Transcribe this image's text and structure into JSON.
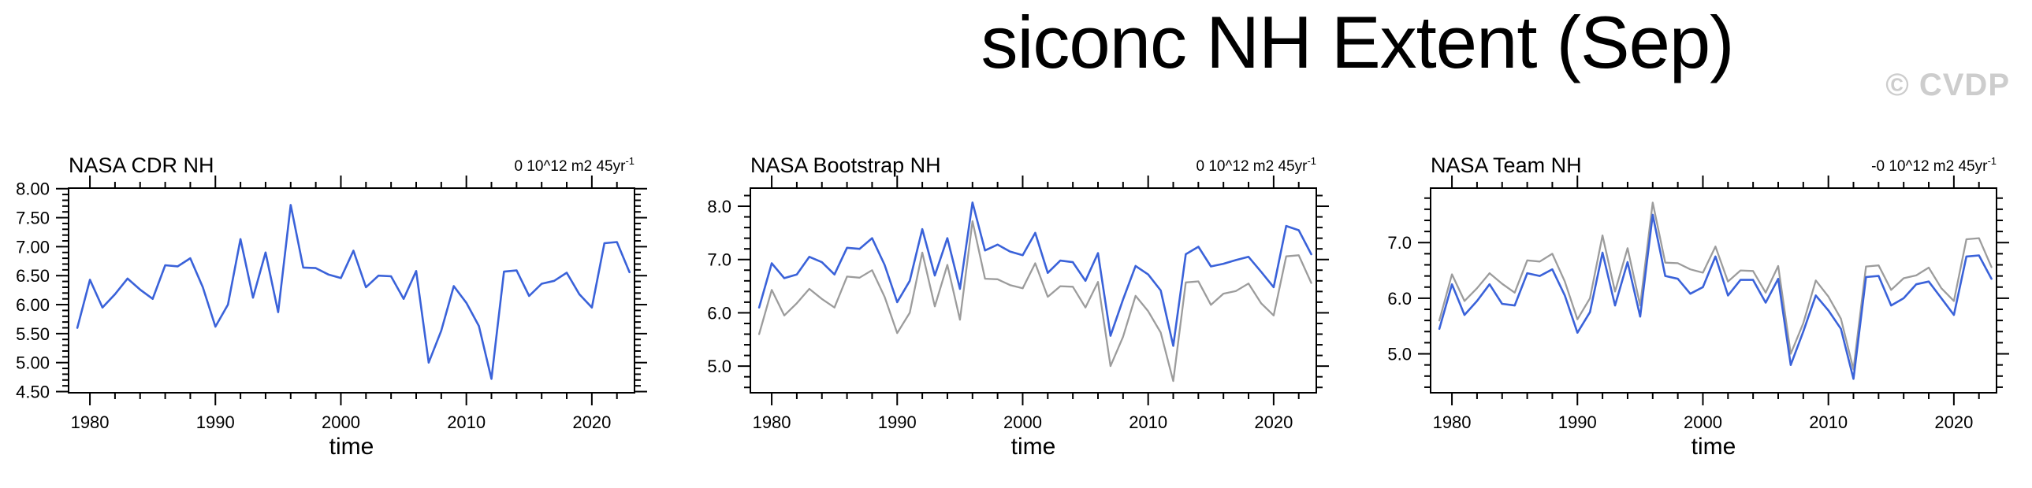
{
  "title": "siconc NH Extent (Sep)",
  "watermark": "© CVDP",
  "colors": {
    "primary_line": "#3a62d9",
    "reference_line": "#9c9c9c",
    "axis": "#000000",
    "text": "#000000",
    "watermark": "#cdcdcd",
    "background": "#ffffff"
  },
  "years": [
    1979,
    1980,
    1981,
    1982,
    1983,
    1984,
    1985,
    1986,
    1987,
    1988,
    1989,
    1990,
    1991,
    1992,
    1993,
    1994,
    1995,
    1996,
    1997,
    1998,
    1999,
    2000,
    2001,
    2002,
    2003,
    2004,
    2005,
    2006,
    2007,
    2008,
    2009,
    2010,
    2011,
    2012,
    2013,
    2014,
    2015,
    2016,
    2017,
    2018,
    2019,
    2020,
    2021,
    2022,
    2023
  ],
  "chart_data": [
    {
      "type": "line",
      "title": "NASA CDR NH",
      "trend_label": {
        "text": "0 10^12 m2 45yr",
        "superscript": "-1"
      },
      "xlabel": "time",
      "xlim": [
        1978.3,
        2023.4
      ],
      "ylim": [
        4.48,
        8.01
      ],
      "x_major_ticks": [
        1980,
        1990,
        2000,
        2010,
        2020
      ],
      "x_tick_labels": [
        "1980",
        "1990",
        "2000",
        "2010",
        "2020"
      ],
      "x_minor_step": 2,
      "y_major_ticks": [
        4.5,
        5.0,
        5.5,
        6.0,
        6.5,
        7.0,
        7.5,
        8.0
      ],
      "y_tick_labels": [
        "4.50",
        "5.00",
        "5.50",
        "6.00",
        "6.50",
        "7.00",
        "7.50",
        "8.00"
      ],
      "y_minor_step": 0.1,
      "series": [
        {
          "name": "NASA CDR NH",
          "role": "primary",
          "values": [
            5.6,
            6.43,
            5.95,
            6.18,
            6.45,
            6.26,
            6.1,
            6.68,
            6.66,
            6.8,
            6.3,
            5.62,
            6.0,
            7.13,
            6.12,
            6.9,
            5.87,
            7.72,
            6.64,
            6.63,
            6.52,
            6.46,
            6.93,
            6.3,
            6.5,
            6.49,
            6.1,
            6.58,
            5.0,
            5.55,
            6.32,
            6.03,
            5.63,
            4.72,
            6.57,
            6.59,
            6.15,
            6.36,
            6.41,
            6.55,
            6.18,
            5.95,
            7.06,
            7.08,
            6.56
          ]
        }
      ]
    },
    {
      "type": "line",
      "title": "NASA Bootstrap NH",
      "trend_label": {
        "text": "0 10^12 m2 45yr",
        "superscript": "-1"
      },
      "xlabel": "time",
      "xlim": [
        1978.3,
        2023.4
      ],
      "ylim": [
        4.5,
        8.34
      ],
      "x_major_ticks": [
        1980,
        1990,
        2000,
        2010,
        2020
      ],
      "x_tick_labels": [
        "1980",
        "1990",
        "2000",
        "2010",
        "2020"
      ],
      "x_minor_step": 2,
      "y_major_ticks": [
        5.0,
        6.0,
        7.0,
        8.0
      ],
      "y_tick_labels": [
        "5.0",
        "6.0",
        "7.0",
        "8.0"
      ],
      "y_minor_step": 0.2,
      "series": [
        {
          "name": "NASA CDR NH reference",
          "role": "reference",
          "values": [
            5.6,
            6.43,
            5.95,
            6.18,
            6.45,
            6.26,
            6.1,
            6.68,
            6.66,
            6.8,
            6.3,
            5.62,
            6.0,
            7.13,
            6.12,
            6.9,
            5.87,
            7.72,
            6.64,
            6.63,
            6.52,
            6.46,
            6.93,
            6.3,
            6.5,
            6.49,
            6.1,
            6.58,
            5.0,
            5.55,
            6.32,
            6.03,
            5.63,
            4.72,
            6.57,
            6.59,
            6.15,
            6.36,
            6.41,
            6.55,
            6.18,
            5.95,
            7.06,
            7.08,
            6.56
          ]
        },
        {
          "name": "NASA Bootstrap NH",
          "role": "primary",
          "values": [
            6.1,
            6.93,
            6.65,
            6.72,
            7.05,
            6.95,
            6.72,
            7.22,
            7.2,
            7.4,
            6.9,
            6.2,
            6.6,
            7.57,
            6.7,
            7.4,
            6.45,
            8.07,
            7.17,
            7.28,
            7.15,
            7.08,
            7.5,
            6.75,
            6.98,
            6.95,
            6.6,
            7.12,
            5.57,
            6.25,
            6.88,
            6.72,
            6.42,
            5.38,
            7.1,
            7.24,
            6.87,
            6.92,
            6.99,
            7.05,
            6.77,
            6.48,
            7.63,
            7.55,
            7.1
          ]
        }
      ]
    },
    {
      "type": "line",
      "title": "NASA Team NH",
      "trend_label": {
        "text": "-0 10^12 m2 45yr",
        "superscript": "-1"
      },
      "xlabel": "time",
      "xlim": [
        1978.3,
        2023.4
      ],
      "ylim": [
        4.3,
        7.98
      ],
      "x_major_ticks": [
        1980,
        1990,
        2000,
        2010,
        2020
      ],
      "x_tick_labels": [
        "1980",
        "1990",
        "2000",
        "2010",
        "2020"
      ],
      "x_minor_step": 2,
      "y_major_ticks": [
        5.0,
        6.0,
        7.0
      ],
      "y_tick_labels": [
        "5.0",
        "6.0",
        "7.0"
      ],
      "y_minor_step": 0.2,
      "series": [
        {
          "name": "NASA CDR NH reference",
          "role": "reference",
          "values": [
            5.6,
            6.43,
            5.95,
            6.18,
            6.45,
            6.26,
            6.1,
            6.68,
            6.66,
            6.8,
            6.3,
            5.62,
            6.0,
            7.13,
            6.12,
            6.9,
            5.87,
            7.72,
            6.64,
            6.63,
            6.52,
            6.46,
            6.93,
            6.3,
            6.5,
            6.49,
            6.1,
            6.58,
            5.0,
            5.55,
            6.32,
            6.03,
            5.63,
            4.72,
            6.57,
            6.59,
            6.15,
            6.36,
            6.41,
            6.55,
            6.18,
            5.95,
            7.06,
            7.08,
            6.56
          ]
        },
        {
          "name": "NASA Team NH",
          "role": "primary",
          "values": [
            5.45,
            6.25,
            5.7,
            5.95,
            6.25,
            5.9,
            5.87,
            6.45,
            6.4,
            6.52,
            6.05,
            5.38,
            5.75,
            6.82,
            5.87,
            6.65,
            5.67,
            7.5,
            6.4,
            6.35,
            6.08,
            6.2,
            6.75,
            6.05,
            6.33,
            6.33,
            5.92,
            6.35,
            4.8,
            5.4,
            6.05,
            5.78,
            5.45,
            4.55,
            6.38,
            6.4,
            5.87,
            6.0,
            6.25,
            6.3,
            6.0,
            5.7,
            6.75,
            6.77,
            6.35
          ]
        }
      ]
    }
  ]
}
